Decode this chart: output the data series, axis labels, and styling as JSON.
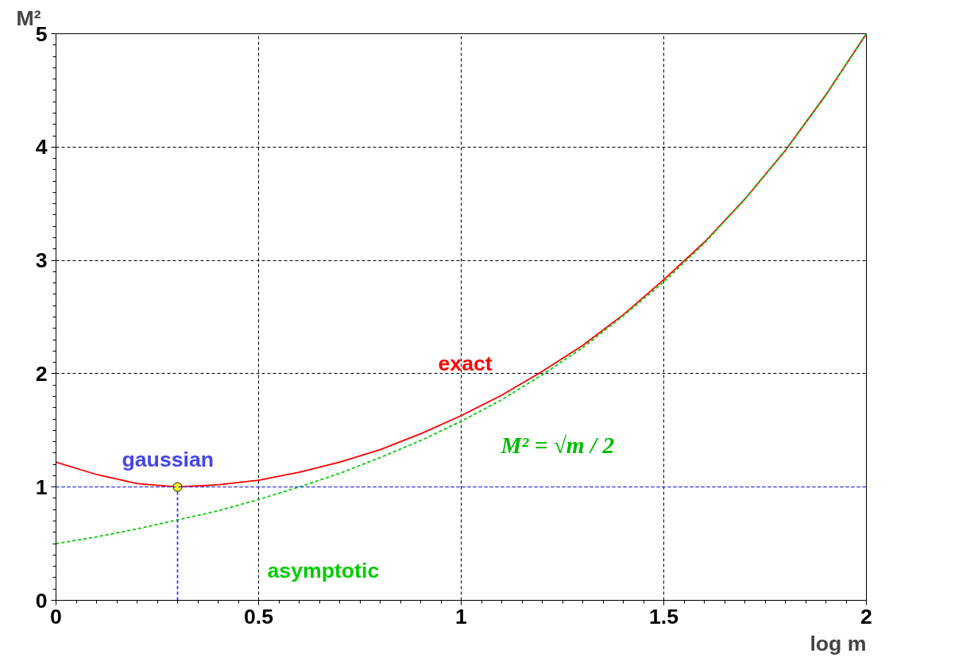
{
  "chart_data": {
    "type": "line",
    "xlabel": "log m",
    "ylabel": "M²",
    "xlim": [
      0,
      2
    ],
    "ylim": [
      0,
      5
    ],
    "xticks": [
      0,
      0.5,
      1,
      1.5,
      2
    ],
    "yticks": [
      0,
      1,
      2,
      3,
      4,
      5
    ],
    "grid": true,
    "series": [
      {
        "name": "exact",
        "color": "#ff0000",
        "line_style": "solid",
        "x": [
          0,
          0.1,
          0.2,
          0.3,
          0.4,
          0.5,
          0.6,
          0.7,
          0.8,
          0.9,
          1.0,
          1.1,
          1.2,
          1.3,
          1.4,
          1.5,
          1.6,
          1.7,
          1.8,
          1.9,
          2.0
        ],
        "values": [
          1.22,
          1.11,
          1.03,
          1.0,
          1.02,
          1.06,
          1.13,
          1.22,
          1.33,
          1.47,
          1.63,
          1.81,
          2.02,
          2.25,
          2.52,
          2.83,
          3.16,
          3.54,
          3.97,
          4.46,
          5.0
        ]
      },
      {
        "name": "asymptotic",
        "color": "#00cc00",
        "line_style": "dashed",
        "x": [
          0,
          0.1,
          0.2,
          0.3,
          0.4,
          0.5,
          0.6,
          0.7,
          0.8,
          0.9,
          1.0,
          1.1,
          1.2,
          1.3,
          1.4,
          1.5,
          1.6,
          1.7,
          1.8,
          1.9,
          2.0
        ],
        "values": [
          0.5,
          0.56,
          0.63,
          0.71,
          0.79,
          0.89,
          1.0,
          1.12,
          1.26,
          1.41,
          1.58,
          1.77,
          1.99,
          2.23,
          2.51,
          2.81,
          3.15,
          3.54,
          3.97,
          4.46,
          5.0
        ]
      },
      {
        "color": "#3333ff",
        "line_style": "dashed",
        "x": [
          0.3,
          0.3
        ],
        "values": [
          0,
          1
        ]
      },
      {
        "name": "gaussian",
        "type": "scatter",
        "marker": "circle",
        "color": "#ffff00",
        "x": [
          0.3
        ],
        "values": [
          1.0
        ]
      }
    ],
    "ref_lines": [
      {
        "axis": "y",
        "value": 1,
        "color": "#3333ff",
        "line_style": "dashed"
      }
    ],
    "annotations": [
      "M² = √m / 2"
    ]
  }
}
